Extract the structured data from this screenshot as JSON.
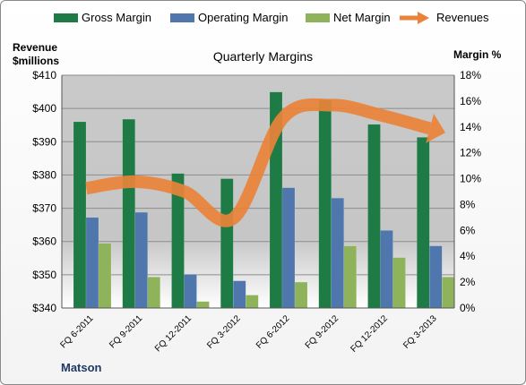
{
  "chart_data": {
    "type": "bar",
    "title": "Quarterly Margins",
    "ylabel_left": [
      "Revenue",
      "$millions"
    ],
    "ylabel_right": "Margin %",
    "footer": "Matson",
    "categories": [
      "FQ 6-2011",
      "FQ 9-2011",
      "FQ 12-2011",
      "FQ 3-2012",
      "FQ 6-2012",
      "FQ 9-2012",
      "FQ 12-2012",
      "FQ 3-2013"
    ],
    "left_axis": {
      "min": 340,
      "max": 410,
      "step": 10,
      "prefix": "$"
    },
    "right_axis": {
      "min": 0,
      "max": 18,
      "step": 2,
      "suffix": "%"
    },
    "series": [
      {
        "name": "Gross Margin",
        "axis": "right",
        "type": "bar",
        "color": "#1e7b45",
        "values": [
          14.4,
          14.6,
          10.4,
          10.0,
          16.7,
          16.1,
          14.2,
          13.2
        ]
      },
      {
        "name": "Operating Margin",
        "axis": "right",
        "type": "bar",
        "color": "#4f77ad",
        "values": [
          7.0,
          7.4,
          2.6,
          2.1,
          9.3,
          8.5,
          6.0,
          4.8
        ]
      },
      {
        "name": "Net Margin",
        "axis": "right",
        "type": "bar",
        "color": "#8fb35a",
        "values": [
          5.0,
          2.4,
          0.5,
          1.0,
          2.0,
          4.8,
          3.9,
          2.4
        ]
      },
      {
        "name": "Revenues",
        "axis": "left",
        "type": "arrow-line",
        "color": "#e9823a",
        "values": [
          376,
          378,
          375,
          367,
          397,
          401,
          398,
          394
        ]
      }
    ],
    "grid": true,
    "legend_position": "top"
  }
}
